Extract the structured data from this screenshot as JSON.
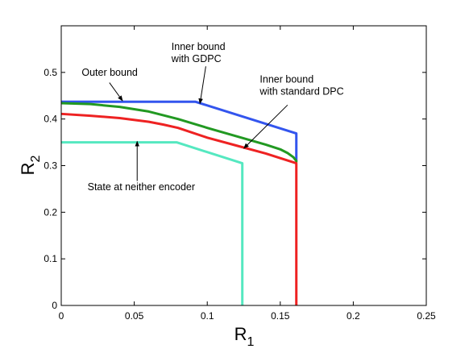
{
  "chart_data": {
    "type": "line",
    "xlabel": "R",
    "xlabel_sub": "1",
    "ylabel": "R",
    "ylabel_sub": "2",
    "xlim": [
      0,
      0.25
    ],
    "ylim": [
      0,
      0.6
    ],
    "xticks": [
      0,
      0.05,
      0.1,
      0.15,
      0.2,
      0.25
    ],
    "xtick_labels": [
      "0",
      "0.05",
      "0.1",
      "0.15",
      "0.2",
      "0.25"
    ],
    "yticks": [
      0,
      0.1,
      0.2,
      0.3,
      0.4,
      0.5
    ],
    "ytick_labels": [
      "0",
      "0.1",
      "0.2",
      "0.3",
      "0.4",
      "0.5"
    ],
    "grid": false,
    "series": [
      {
        "color": "#3355ee",
        "x": [
          0,
          0.092,
          0.161,
          0.161
        ],
        "y": [
          0.437,
          0.437,
          0.369,
          0.31
        ]
      },
      {
        "color": "#229922",
        "x": [
          0,
          0.02,
          0.04,
          0.06,
          0.08,
          0.1,
          0.12,
          0.14,
          0.15,
          0.155,
          0.159,
          0.161,
          0.161
        ],
        "y": [
          0.434,
          0.432,
          0.426,
          0.416,
          0.4,
          0.381,
          0.363,
          0.345,
          0.335,
          0.327,
          0.318,
          0.31,
          0.307
        ]
      },
      {
        "color": "#ee2222",
        "x": [
          0,
          0.02,
          0.04,
          0.06,
          0.07,
          0.08,
          0.1,
          0.12,
          0.14,
          0.161,
          0.161
        ],
        "y": [
          0.411,
          0.407,
          0.402,
          0.394,
          0.388,
          0.381,
          0.36,
          0.343,
          0.326,
          0.305,
          0
        ]
      },
      {
        "color": "#55e8c0",
        "x": [
          0,
          0.079,
          0.124,
          0.124
        ],
        "y": [
          0.35,
          0.35,
          0.305,
          0
        ]
      }
    ],
    "annotations": [
      {
        "lines": [
          "Outer bound"
        ],
        "x": 0.014,
        "y": 0.493,
        "anchor": "start",
        "arrow_from": [
          0.033,
          0.478
        ],
        "arrow_to": [
          0.042,
          0.439
        ]
      },
      {
        "lines": [
          "Inner bound",
          "with GDPC"
        ],
        "x": 0.0755,
        "y": 0.548,
        "anchor": "start",
        "arrow_from": [
          0.099,
          0.513
        ],
        "arrow_to": [
          0.095,
          0.433
        ]
      },
      {
        "lines": [
          "Inner bound",
          "with standard DPC"
        ],
        "x": 0.136,
        "y": 0.478,
        "anchor": "start",
        "arrow_from": [
          0.155,
          0.43
        ],
        "arrow_to": [
          0.125,
          0.337
        ]
      },
      {
        "lines": [
          "State at neither encoder"
        ],
        "x": 0.018,
        "y": 0.247,
        "anchor": "start",
        "arrow_from": [
          0.052,
          0.267
        ],
        "arrow_to": [
          0.052,
          0.352
        ]
      }
    ]
  }
}
